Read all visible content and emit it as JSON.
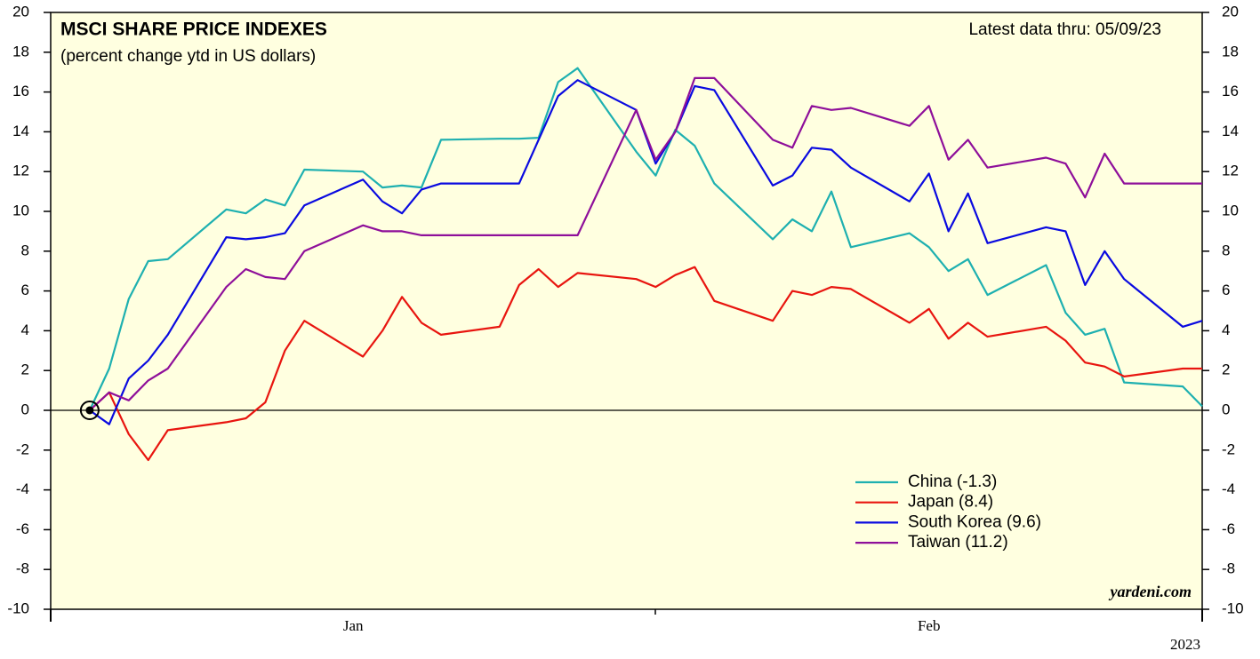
{
  "chart_data": {
    "type": "line",
    "title": "MSCI SHARE PRICE INDEXES",
    "subtitle": "(percent change ytd in US dollars)",
    "annotation": "Latest data thru: 05/09/23",
    "source": "yardeni.com",
    "year_label": "2023",
    "xlim": [
      0,
      59
    ],
    "xticks": [
      {
        "value": 15.5,
        "label": "Jan"
      },
      {
        "value": 45,
        "label": "Feb"
      }
    ],
    "ylim": [
      -10,
      20
    ],
    "yticks": [
      -10,
      -8,
      -6,
      -4,
      -2,
      0,
      2,
      4,
      6,
      8,
      10,
      12,
      14,
      16,
      18,
      20
    ],
    "legend": "lower right",
    "x": [
      2,
      3,
      4,
      5,
      6,
      9,
      10,
      11,
      12,
      13,
      16,
      17,
      18,
      19,
      20,
      23,
      24,
      25,
      26,
      27,
      30,
      31,
      32,
      33,
      34,
      37,
      38,
      39,
      40,
      41,
      44,
      45,
      46,
      47,
      48,
      51,
      52,
      53,
      54,
      55,
      58,
      59
    ],
    "series": [
      {
        "name": "China (-1.3)",
        "color": "#1eb0b0",
        "values": [
          0,
          2.1,
          5.6,
          7.5,
          7.6,
          10.1,
          9.9,
          10.6,
          10.3,
          12.1,
          12.0,
          11.2,
          11.3,
          11.2,
          13.6,
          13.65,
          13.65,
          13.7,
          16.5,
          17.2,
          13.0,
          11.8,
          14.1,
          13.3,
          11.4,
          8.6,
          9.6,
          9.0,
          11.0,
          8.2,
          8.9,
          8.2,
          7.0,
          7.6,
          5.8,
          7.3,
          4.9,
          3.8,
          4.1,
          1.4,
          1.2,
          0.2
        ]
      },
      {
        "name": "Japan (8.4)",
        "color": "#e8150f",
        "values": [
          0,
          0.9,
          -1.2,
          -2.5,
          -1.0,
          -0.6,
          -0.4,
          0.4,
          3.0,
          4.5,
          2.7,
          4.0,
          5.7,
          4.4,
          3.8,
          4.2,
          6.3,
          7.1,
          6.2,
          6.9,
          6.6,
          6.2,
          6.8,
          7.2,
          5.5,
          4.5,
          6.0,
          5.8,
          6.2,
          6.1,
          4.4,
          5.1,
          3.6,
          4.4,
          3.7,
          4.2,
          3.5,
          2.4,
          2.2,
          1.7,
          2.1,
          2.1
        ]
      },
      {
        "name": "South Korea (9.6)",
        "color": "#0a0ae0",
        "values": [
          0,
          -0.7,
          1.6,
          2.5,
          3.8,
          8.7,
          8.6,
          8.7,
          8.9,
          10.3,
          11.6,
          10.5,
          9.9,
          11.1,
          11.4,
          11.4,
          11.4,
          13.6,
          15.8,
          16.6,
          15.1,
          12.4,
          14.0,
          16.3,
          16.1,
          11.3,
          11.8,
          13.2,
          13.1,
          12.2,
          10.5,
          11.9,
          9.0,
          10.9,
          8.4,
          9.2,
          9.0,
          6.3,
          8.0,
          6.6,
          4.2,
          4.5
        ]
      },
      {
        "name": "Taiwan (11.2)",
        "color": "#8e0f9a",
        "values": [
          0,
          0.9,
          0.5,
          1.5,
          2.1,
          6.2,
          7.1,
          6.7,
          6.6,
          8.0,
          9.3,
          9.0,
          9.0,
          8.8,
          8.8,
          8.8,
          8.8,
          8.8,
          8.8,
          8.8,
          15.1,
          12.6,
          14.0,
          16.7,
          16.7,
          13.6,
          13.2,
          15.3,
          15.1,
          15.2,
          14.3,
          15.3,
          12.6,
          13.6,
          12.2,
          12.7,
          12.4,
          10.7,
          12.9,
          11.4,
          11.4,
          11.4
        ]
      }
    ]
  }
}
